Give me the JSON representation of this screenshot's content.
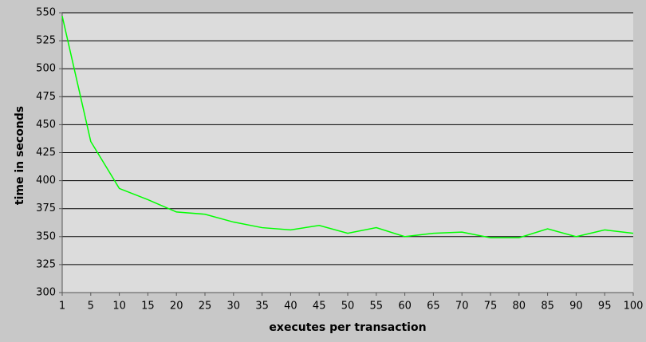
{
  "chart_data": {
    "type": "line",
    "x_label": "executes per transaction",
    "y_label": "time in seconds",
    "categories": [
      "1",
      "5",
      "10",
      "15",
      "20",
      "25",
      "30",
      "35",
      "40",
      "45",
      "50",
      "55",
      "60",
      "65",
      "70",
      "75",
      "80",
      "85",
      "90",
      "95",
      "100"
    ],
    "series": [
      {
        "color": "#00ff00",
        "values": [
          547,
          435,
          393,
          383,
          372,
          370,
          363,
          358,
          356,
          360,
          353,
          358,
          350,
          353,
          354,
          349,
          349,
          357,
          350,
          356,
          353
        ]
      }
    ],
    "ylim": [
      300,
      550
    ],
    "yticks": [
      300,
      325,
      350,
      375,
      400,
      425,
      450,
      475,
      500,
      525,
      550
    ],
    "grid": true
  }
}
